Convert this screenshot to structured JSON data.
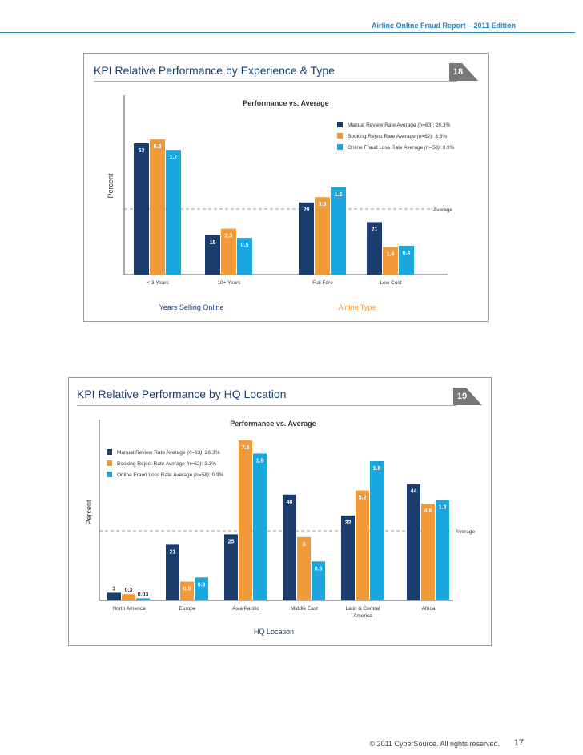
{
  "header": {
    "report_title": "Airline Online Fraud Report – 2011 Edition"
  },
  "colors": {
    "manual": "#1b3d6e",
    "booking": "#f29a38",
    "loss": "#1aa7e0",
    "accent": "#2a7fb8",
    "badge": "#777777"
  },
  "legend": {
    "series": [
      {
        "label": "Manual Review Rate Average",
        "n": "(n=63)",
        "value": ": 26.3%"
      },
      {
        "label": "Booking Reject Rate Average",
        "n": "(n=62)",
        "value": ": 3.3%"
      },
      {
        "label": "Online Fraud Loss Rate Average",
        "n": "(n=58)",
        "value": ": 0.9%"
      }
    ]
  },
  "panel1": {
    "title": "KPI Relative Performance by Experience & Type",
    "badge": "18",
    "subtitle": "Performance vs. Average",
    "ylabel": "Percent",
    "avg_label": "Average",
    "group_labels": [
      "Years Selling Online",
      "Airline Type"
    ]
  },
  "panel2": {
    "title": "KPI Relative Performance by HQ Location",
    "badge": "19",
    "subtitle": "Performance vs. Average",
    "ylabel": "Percent",
    "avg_label": "Average",
    "xlabel": "HQ Location"
  },
  "chart_data": [
    {
      "type": "bar",
      "title": "Performance vs. Average",
      "ylabel": "Percent",
      "categories": [
        "< 3 Years",
        "10+ Years",
        "Full Fare",
        "Low Cost"
      ],
      "series": [
        {
          "name": "Manual Review Rate Average (n=63): 26.3%",
          "values": [
            53,
            15,
            29,
            21
          ]
        },
        {
          "name": "Booking Reject Rate Average (n=62): 3.3%",
          "values": [
            6.8,
            2.3,
            3.9,
            1.4
          ]
        },
        {
          "name": "Online Fraud Loss Rate Average (n=58): 0.9%",
          "values": [
            1.7,
            0.5,
            1.2,
            0.4
          ]
        }
      ],
      "relative_to_average": [
        [
          2.0,
          0.6,
          1.1,
          0.8
        ],
        [
          2.06,
          0.7,
          1.18,
          0.42
        ],
        [
          1.9,
          0.56,
          1.33,
          0.44
        ]
      ],
      "averages": [
        26.3,
        3.3,
        0.9
      ],
      "legend": "top-right",
      "grid": false
    },
    {
      "type": "bar",
      "title": "Performance vs. Average",
      "ylabel": "Percent",
      "xlabel": "HQ Location",
      "categories": [
        "North America",
        "Europe",
        "Asia Pacific",
        "Middle East",
        "Latin & Central America",
        "Africa"
      ],
      "series": [
        {
          "name": "Manual Review Rate Average (n=63): 26.3%",
          "values": [
            3,
            21,
            25,
            40,
            32,
            44
          ]
        },
        {
          "name": "Booking Reject Rate Average (n=62): 3.3%",
          "values": [
            0.3,
            0.9,
            7.6,
            3.0,
            5.2,
            4.6
          ]
        },
        {
          "name": "Online Fraud Loss Rate Average (n=58): 0.9%",
          "values": [
            0.03,
            0.3,
            1.9,
            0.5,
            1.8,
            1.3
          ]
        }
      ],
      "relative_to_average": [
        [
          0.11,
          0.8,
          0.95,
          1.52,
          1.22,
          1.67
        ],
        [
          0.09,
          0.27,
          2.3,
          0.91,
          1.58,
          1.39
        ],
        [
          0.03,
          0.33,
          2.11,
          0.56,
          2.0,
          1.44
        ]
      ],
      "averages": [
        26.3,
        3.3,
        0.9
      ],
      "legend": "top-left",
      "grid": false
    }
  ],
  "footer": {
    "copyright": "© 2011 CyberSource. All rights reserved.",
    "page_number": "17"
  }
}
